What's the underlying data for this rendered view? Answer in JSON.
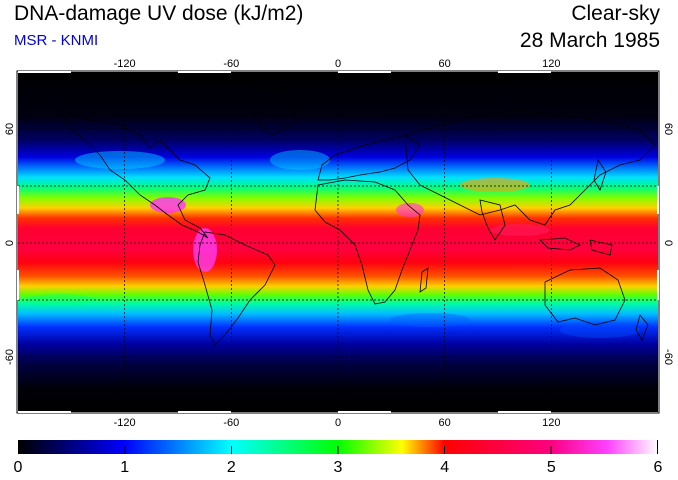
{
  "header": {
    "title": "DNA-damage UV dose (kJ/m2)",
    "credit": "MSR - KNMI",
    "sky_condition": "Clear-sky",
    "date": "28 March 1985"
  },
  "map": {
    "projection": "equirectangular",
    "lon_ticks": [
      "-120",
      "-60",
      "0",
      "60",
      "120"
    ],
    "lat_ticks_left": [
      "60",
      "0",
      "-60"
    ],
    "lat_ticks_right": [
      "60",
      "0",
      "-60"
    ]
  },
  "colorbar": {
    "labels": [
      "0",
      "1",
      "2",
      "3",
      "4",
      "5",
      "6"
    ],
    "colors": [
      "#000000",
      "#0000ff",
      "#00ffff",
      "#00ff00",
      "#ffff00",
      "#ff0000",
      "#ff00ff",
      "#ffffff"
    ]
  }
}
